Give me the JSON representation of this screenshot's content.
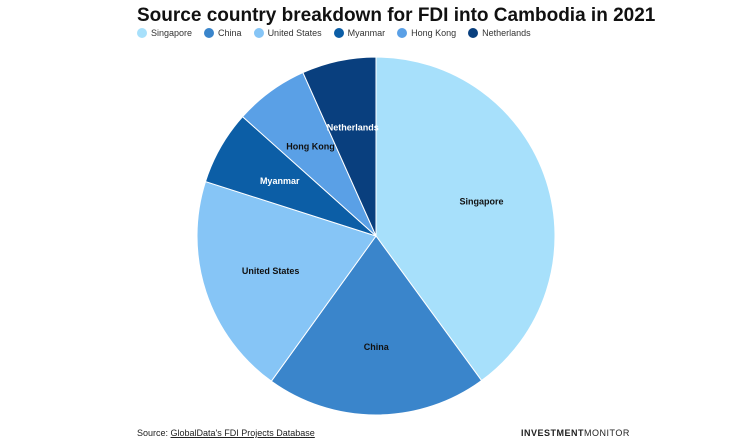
{
  "title": "Source country breakdown for FDI into Cambodia in 2021",
  "footer": {
    "source_prefix": "Source: ",
    "source_link": "GlobalData's FDI Projects Database",
    "brand_bold": "INVESTMENT",
    "brand_regular": "MONITOR"
  },
  "chart_data": {
    "type": "pie",
    "title": "Source country breakdown for FDI into Cambodia in 2021",
    "legend_position": "top-left",
    "slices": [
      {
        "label": "Singapore",
        "value": 40,
        "color": "#a7e0fb"
      },
      {
        "label": "China",
        "value": 20,
        "color": "#3a85cb"
      },
      {
        "label": "United States",
        "value": 20,
        "color": "#86c5f6"
      },
      {
        "label": "Myanmar",
        "value": 6.7,
        "color": "#0c5ea6"
      },
      {
        "label": "Hong Kong",
        "value": 6.7,
        "color": "#5aa0e6"
      },
      {
        "label": "Netherlands",
        "value": 6.7,
        "color": "#093f7e"
      }
    ]
  }
}
